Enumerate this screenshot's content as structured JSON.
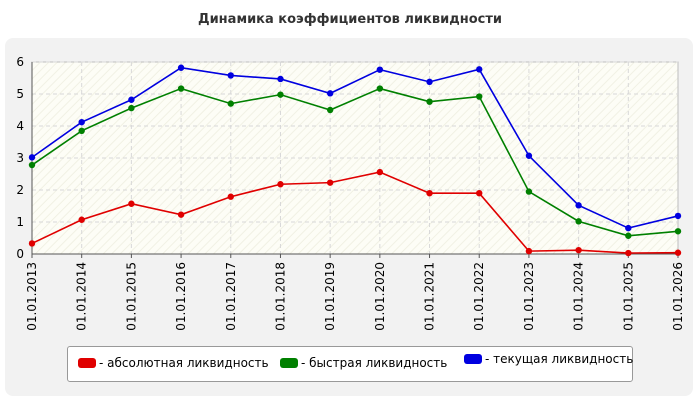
{
  "chart_data": {
    "type": "line",
    "title": "Динамика коэффициентов ликвидности",
    "categories": [
      "01.01.2013",
      "01.01.2014",
      "01.01.2015",
      "01.01.2016",
      "01.01.2017",
      "01.01.2018",
      "01.01.2019",
      "01.01.2020",
      "01.01.2021",
      "01.01.2022",
      "01.01.2023",
      "01.01.2024",
      "01.01.2025",
      "01.01.2026"
    ],
    "series": [
      {
        "name": "- абсолютная ликвидность",
        "color": "#e00000",
        "values": [
          0.33,
          1.07,
          1.57,
          1.23,
          1.79,
          2.18,
          2.23,
          2.56,
          1.9,
          1.9,
          0.09,
          0.12,
          0.03,
          0.04
        ]
      },
      {
        "name": "- быстрая ликвидность",
        "color": "#008000",
        "values": [
          2.78,
          3.85,
          4.56,
          5.17,
          4.7,
          4.98,
          4.5,
          5.17,
          4.76,
          4.92,
          1.95,
          1.02,
          0.57,
          0.71
        ]
      },
      {
        "name": "- текущая ликвидность",
        "color": "#0000e0",
        "values": [
          3.02,
          4.12,
          4.82,
          5.82,
          5.58,
          5.47,
          5.02,
          5.76,
          5.38,
          5.77,
          3.07,
          1.52,
          0.81,
          1.19
        ]
      }
    ],
    "yticks": [
      0,
      1,
      2,
      3,
      4,
      5,
      6
    ],
    "ylim": [
      0,
      6
    ],
    "grid": true,
    "legend_position": "bottom"
  }
}
